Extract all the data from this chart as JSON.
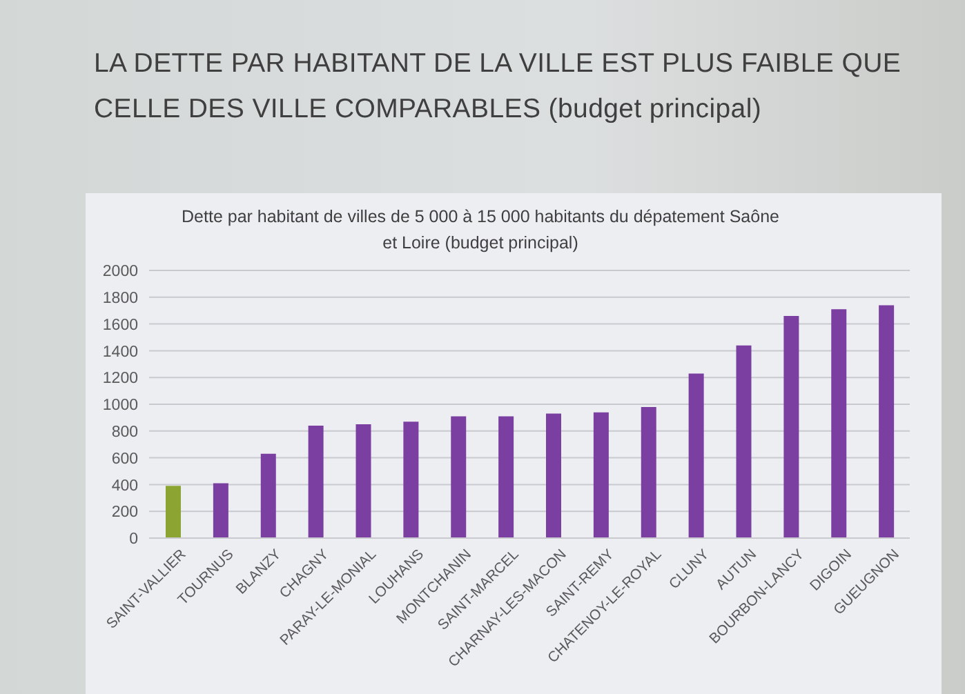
{
  "chart_data": {
    "type": "bar",
    "title": "LA DETTE PAR HABITANT DE LA VILLE EST PLUS FAIBLE QUE CELLE DES VILLE COMPARABLES (budget principal)",
    "subtitle": "Dette par habitant de villes de 5 000 à 15 000 habitants du dépatement Saône et Loire (budget principal)",
    "categories": [
      "SAINT-VALLIER",
      "TOURNUS",
      "BLANZY",
      "CHAGNY",
      "PARAY-LE-MONIAL",
      "LOUHANS",
      "MONTCHANIN",
      "SAINT-MARCEL",
      "CHARNAY-LES-MACON",
      "SAINT-REMY",
      "CHATENOY-LE-ROYAL",
      "CLUNY",
      "AUTUN",
      "BOURBON-LANCY",
      "DIGOIN",
      "GUEUGNON"
    ],
    "values": [
      390,
      410,
      630,
      840,
      850,
      870,
      910,
      910,
      930,
      940,
      980,
      1230,
      1440,
      1660,
      1710,
      1740
    ],
    "colors": [
      "#8ba432",
      "#7b3fa1",
      "#7b3fa1",
      "#7b3fa1",
      "#7b3fa1",
      "#7b3fa1",
      "#7b3fa1",
      "#7b3fa1",
      "#7b3fa1",
      "#7b3fa1",
      "#7b3fa1",
      "#7b3fa1",
      "#7b3fa1",
      "#7b3fa1",
      "#7b3fa1",
      "#7b3fa1"
    ],
    "ylim": [
      0,
      2000
    ],
    "yticks": [
      0,
      200,
      400,
      600,
      800,
      1000,
      1200,
      1400,
      1600,
      1800,
      2000
    ],
    "grid": "y"
  }
}
